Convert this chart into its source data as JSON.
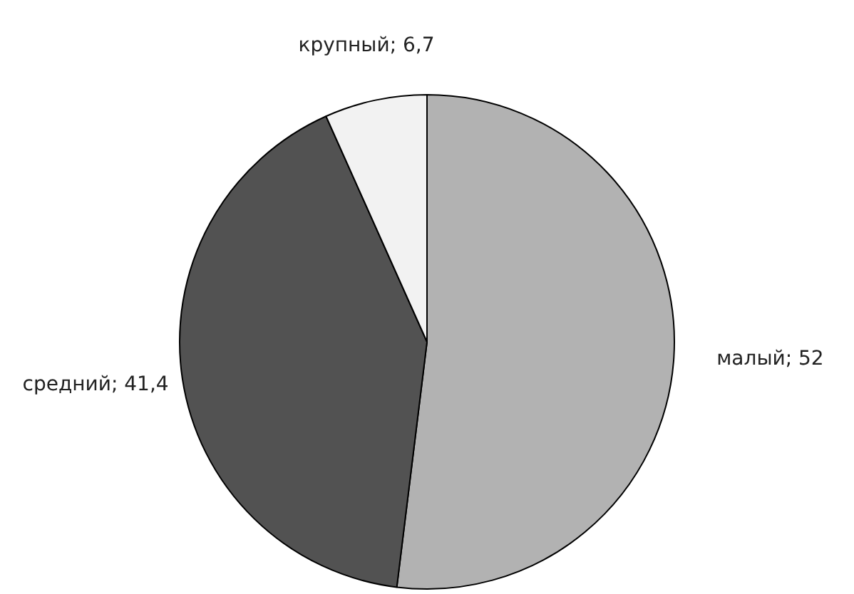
{
  "chart_data": {
    "type": "pie",
    "categories": [
      "малый",
      "средний",
      "крупный"
    ],
    "values": [
      52,
      41.4,
      6.7
    ],
    "value_labels": [
      "52",
      "41,4",
      "6,7"
    ],
    "colors": [
      "#b2b2b2",
      "#525252",
      "#f2f2f2"
    ],
    "legend": false
  }
}
